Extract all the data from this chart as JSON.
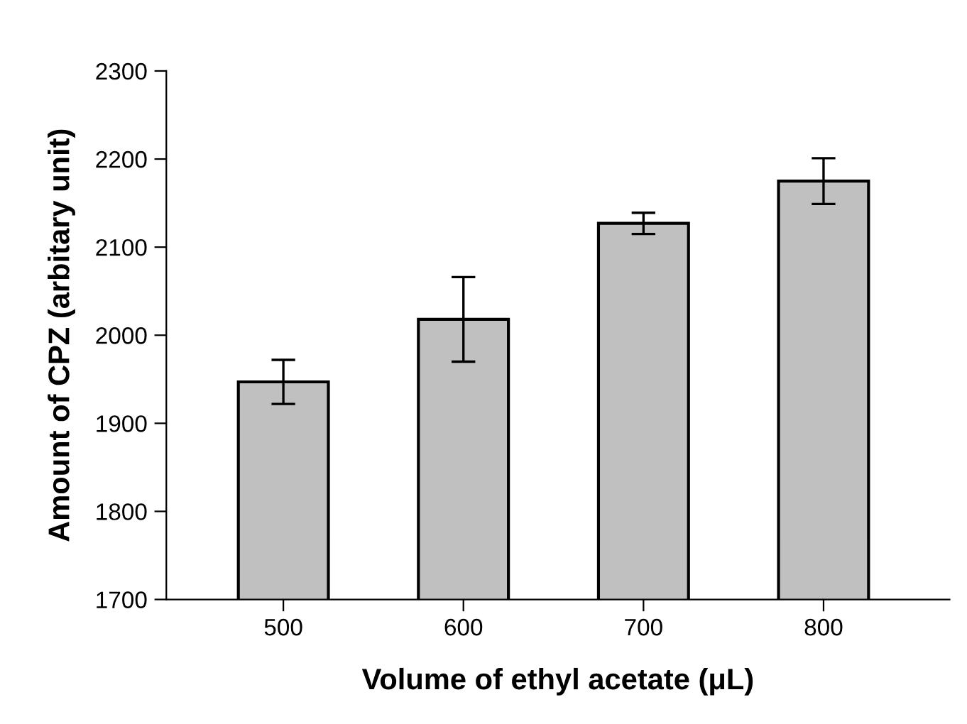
{
  "chart_data": {
    "type": "bar",
    "xlabel": "Volume of ethyl acetate (μL)",
    "ylabel": "Amount of CPZ (arbitary unit)",
    "categories": [
      "500",
      "600",
      "700",
      "800"
    ],
    "values": [
      1947,
      2018,
      2127,
      2175
    ],
    "errors": [
      25,
      48,
      12,
      26
    ],
    "color": "#c0c0c0",
    "ylim": [
      1700,
      2300
    ],
    "yticks": [
      1700,
      1800,
      1900,
      2000,
      2100,
      2200,
      2300
    ],
    "grid": false
  }
}
